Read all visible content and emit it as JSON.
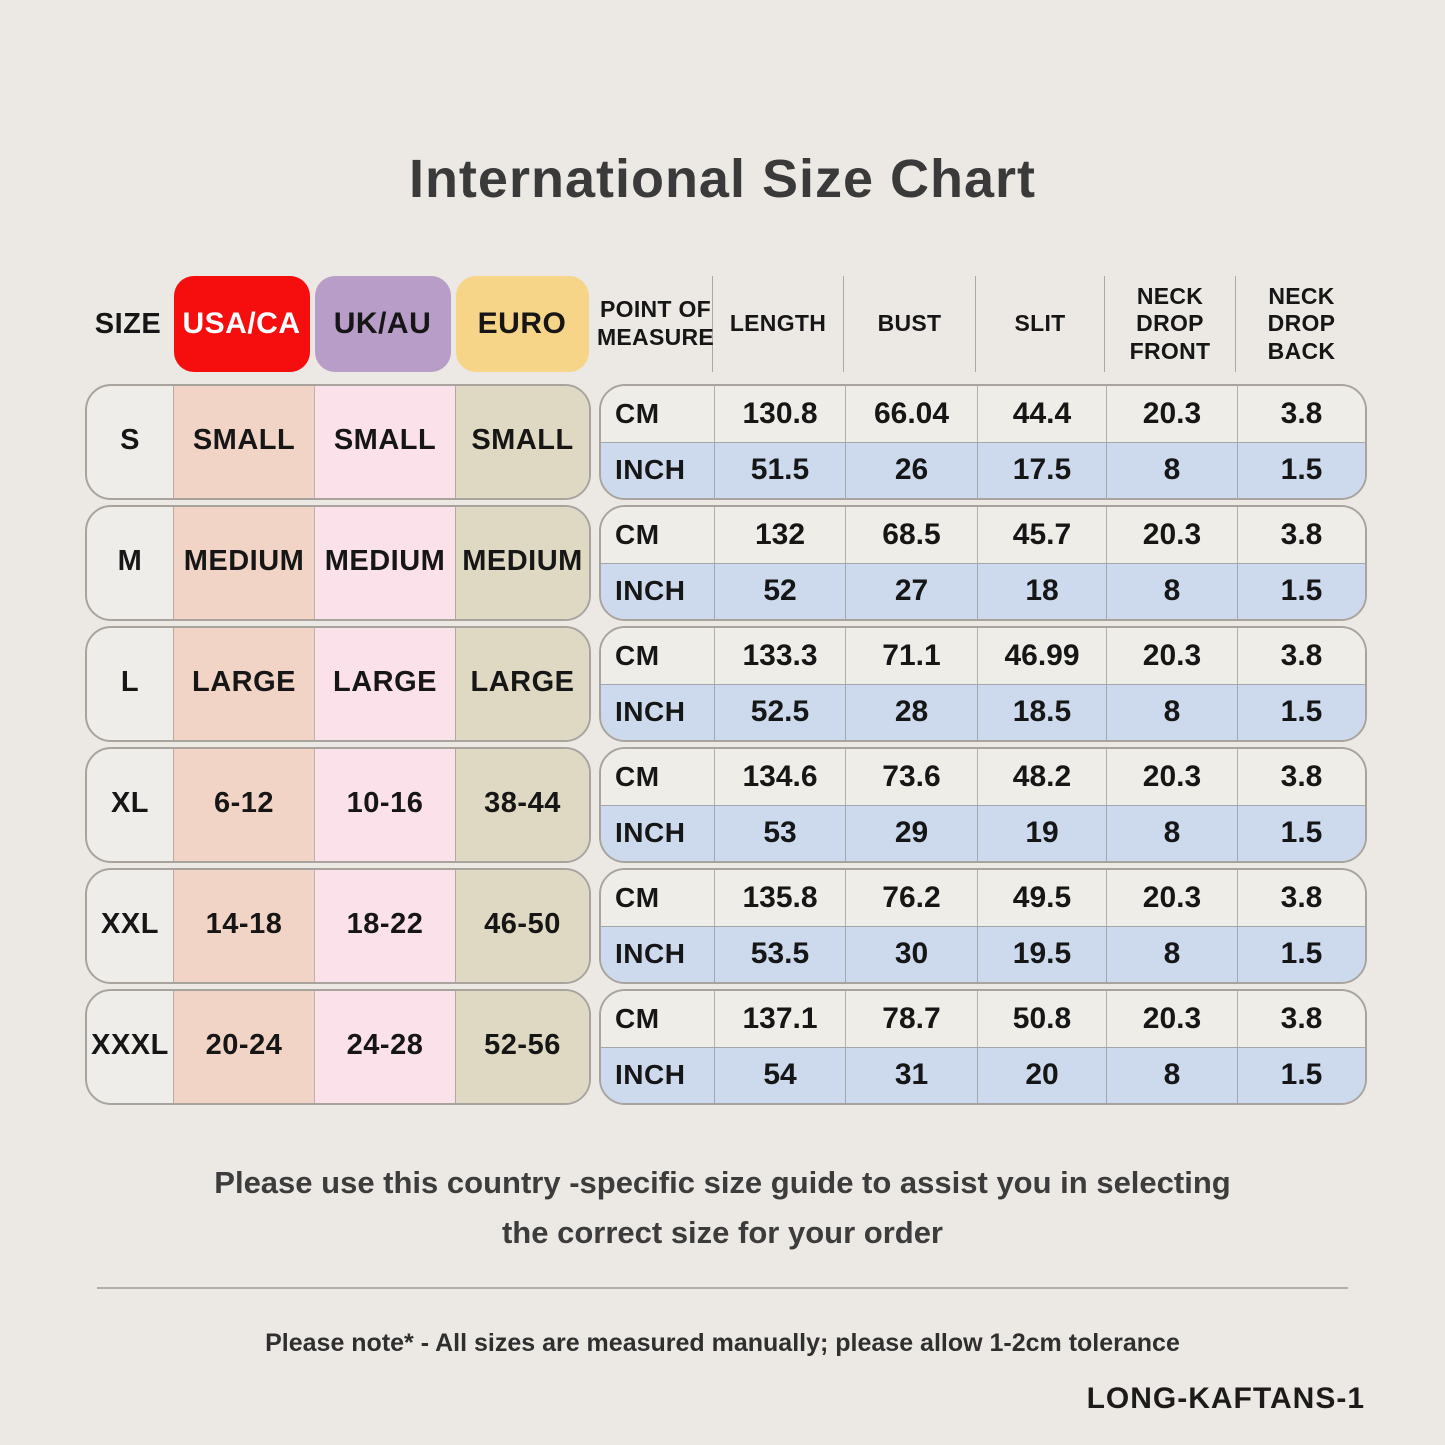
{
  "page": {
    "title": "International Size Chart",
    "note_line1": "Please use this country -specific size guide to assist you in selecting",
    "note_line2": "the correct size for your order",
    "tolerance_note": "Please note* - All sizes are measured manually; please allow 1-2cm tolerance",
    "product_code": "LONG-KAFTANS-1"
  },
  "colors": {
    "page_bg": "#ece9e5",
    "text_dark": "#161616",
    "title_text": "#3a3a3a",
    "note_text": "#3c3c3c",
    "border": "#a8a39d",
    "usa_badge_bg": "#f60e0e",
    "usa_badge_text": "#ffffff",
    "uk_badge_bg": "#b89dc9",
    "euro_badge_bg": "#f6d488",
    "size_col_bg": "#efede9",
    "usa_col_bg": "#f1d4c5",
    "uk_col_bg": "#fbe1e9",
    "euro_col_bg": "#dfd9c3",
    "cm_row_bg": "#efede8",
    "inch_row_bg": "#cddaee"
  },
  "size_table": {
    "headers": {
      "size": "SIZE",
      "usa": "USA/CA",
      "uk": "UK/AU",
      "euro": "EURO"
    },
    "rows": [
      {
        "size": "S",
        "usa": "SMALL",
        "uk": "SMALL",
        "euro": "SMALL"
      },
      {
        "size": "M",
        "usa": "MEDIUM",
        "uk": "MEDIUM",
        "euro": "MEDIUM"
      },
      {
        "size": "L",
        "usa": "LARGE",
        "uk": "LARGE",
        "euro": "LARGE"
      },
      {
        "size": "XL",
        "usa": "6-12",
        "uk": "10-16",
        "euro": "38-44"
      },
      {
        "size": "XXL",
        "usa": "14-18",
        "uk": "18-22",
        "euro": "46-50"
      },
      {
        "size": "XXXL",
        "usa": "20-24",
        "uk": "24-28",
        "euro": "52-56"
      }
    ]
  },
  "measure_table": {
    "headers": [
      "POINT OF\nMEASURE",
      "LENGTH",
      "BUST",
      "SLIT",
      "NECK DROP\nFRONT",
      "NECK DROP\nBACK"
    ],
    "unit_labels": {
      "cm": "CM",
      "inch": "INCH"
    },
    "groups": [
      {
        "cm": [
          "130.8",
          "66.04",
          "44.4",
          "20.3",
          "3.8"
        ],
        "inch": [
          "51.5",
          "26",
          "17.5",
          "8",
          "1.5"
        ]
      },
      {
        "cm": [
          "132",
          "68.5",
          "45.7",
          "20.3",
          "3.8"
        ],
        "inch": [
          "52",
          "27",
          "18",
          "8",
          "1.5"
        ]
      },
      {
        "cm": [
          "133.3",
          "71.1",
          "46.99",
          "20.3",
          "3.8"
        ],
        "inch": [
          "52.5",
          "28",
          "18.5",
          "8",
          "1.5"
        ]
      },
      {
        "cm": [
          "134.6",
          "73.6",
          "48.2",
          "20.3",
          "3.8"
        ],
        "inch": [
          "53",
          "29",
          "19",
          "8",
          "1.5"
        ]
      },
      {
        "cm": [
          "135.8",
          "76.2",
          "49.5",
          "20.3",
          "3.8"
        ],
        "inch": [
          "53.5",
          "30",
          "19.5",
          "8",
          "1.5"
        ]
      },
      {
        "cm": [
          "137.1",
          "78.7",
          "50.8",
          "20.3",
          "3.8"
        ],
        "inch": [
          "54",
          "31",
          "20",
          "8",
          "1.5"
        ]
      }
    ]
  }
}
